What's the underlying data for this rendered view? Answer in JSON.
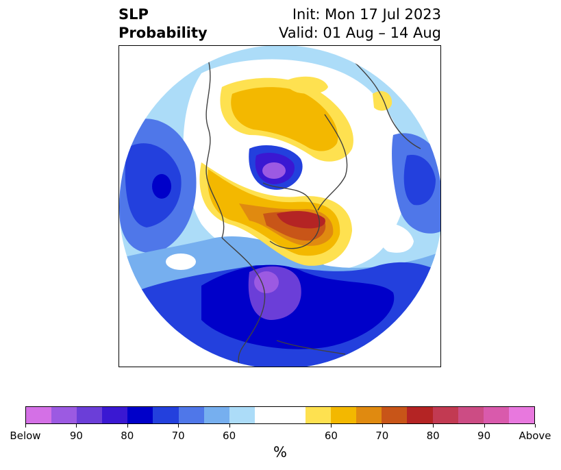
{
  "title": {
    "left_line1": "SLP",
    "left_line2": "Probability",
    "right_line1": "Init: Mon 17 Jul 2023",
    "right_line2": "Valid: 01 Aug – 14 Aug"
  },
  "map": {
    "projection": "north-polar-stereographic",
    "background": "#ffffff",
    "coastline_color": "#404040",
    "features": [
      {
        "name": "strong-negative-core-north-america",
        "category": "Below 90"
      },
      {
        "name": "negative-core-north-of-siberia",
        "category": "Below 90"
      },
      {
        "name": "strong-positive-greenland",
        "category": "80"
      },
      {
        "name": "positive-anomaly-eurasia",
        "category": "60"
      },
      {
        "name": "negative-anomaly-north-atlantic",
        "category": "80"
      },
      {
        "name": "negative-anomaly-north-pacific",
        "category": "70"
      }
    ]
  },
  "colorbar": {
    "colors": [
      "#d470e6",
      "#9c5ae2",
      "#6b3ed8",
      "#3a18d2",
      "#0000c9",
      "#2340dd",
      "#4f77e9",
      "#76afef",
      "#acdcf8",
      "#ffffff",
      "#ffffff",
      "#fee150",
      "#f3b800",
      "#e08a10",
      "#c85518",
      "#b42424",
      "#c23a52",
      "#cc4c84",
      "#d95aac",
      "#e878de"
    ],
    "tick_labels": [
      "Below",
      "90",
      "80",
      "70",
      "60",
      "60",
      "70",
      "80",
      "90",
      "Above"
    ],
    "label": "%"
  }
}
